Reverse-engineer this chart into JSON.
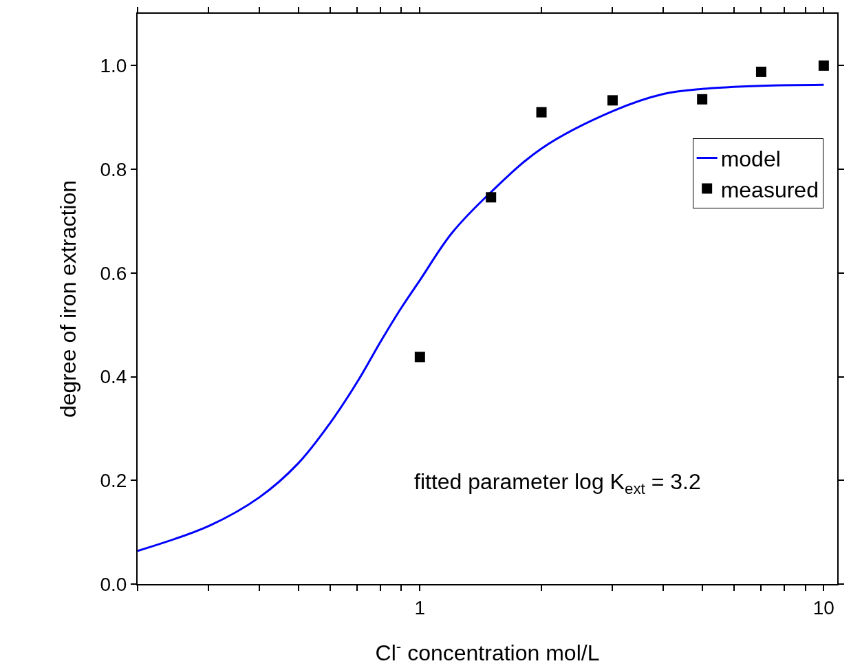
{
  "chart_data": {
    "type": "scatter",
    "xlabel": "Cl$^{-}$ concentration mol/L",
    "ylabel": "degree of iron extraction",
    "log": "x",
    "xlim": [
      0.2,
      10.8
    ],
    "ylim": [
      0,
      1.1
    ],
    "xticks": [
      {
        "value": 0.2,
        "label": null
      },
      {
        "value": 0.3,
        "label": null
      },
      {
        "value": 0.4,
        "label": null
      },
      {
        "value": 0.5,
        "label": null
      },
      {
        "value": 0.6,
        "label": null
      },
      {
        "value": 0.7,
        "label": null
      },
      {
        "value": 0.8,
        "label": null
      },
      {
        "value": 0.9,
        "label": null
      },
      1,
      {
        "value": 2,
        "label": null
      },
      {
        "value": 3,
        "label": null
      },
      {
        "value": 4,
        "label": null
      },
      {
        "value": 5,
        "label": null
      },
      {
        "value": 6,
        "label": null
      },
      {
        "value": 7,
        "label": null
      },
      {
        "value": 8,
        "label": null
      },
      {
        "value": 9,
        "label": null
      },
      10
    ],
    "yticks": [
      {
        "value": 0,
        "label": "0.0"
      },
      {
        "value": 0.2,
        "label": "0.2"
      },
      {
        "value": 0.4,
        "label": "0.4"
      },
      {
        "value": 0.6,
        "label": "0.6"
      },
      {
        "value": 0.8,
        "label": "0.8"
      },
      {
        "value": 1.0,
        "label": "1.0"
      }
    ],
    "legend": "right",
    "series": [
      {
        "name": "model",
        "type": "line",
        "color": "#0000ff",
        "line_style": "solid",
        "marker": "none",
        "x": [
          0.2,
          0.3,
          0.4,
          0.5,
          0.6,
          0.7,
          0.8,
          0.9,
          1,
          1.2,
          1.5,
          2,
          3,
          4,
          5,
          7,
          10
        ],
        "values": [
          0.064,
          0.112,
          0.167,
          0.233,
          0.311,
          0.39,
          0.468,
          0.533,
          0.586,
          0.677,
          0.756,
          0.84,
          0.912,
          0.945,
          0.955,
          0.961,
          0.963
        ]
      },
      {
        "name": "measured",
        "color": "#000000",
        "marker": "square",
        "x": [
          1,
          1.5,
          2,
          3,
          5,
          7,
          10
        ],
        "values": [
          0.438,
          0.746,
          0.91,
          0.933,
          0.935,
          0.988,
          1.0
        ]
      }
    ],
    "annotations": [
      "fitted parameter log K$_{ext}$ = 3.2"
    ]
  }
}
